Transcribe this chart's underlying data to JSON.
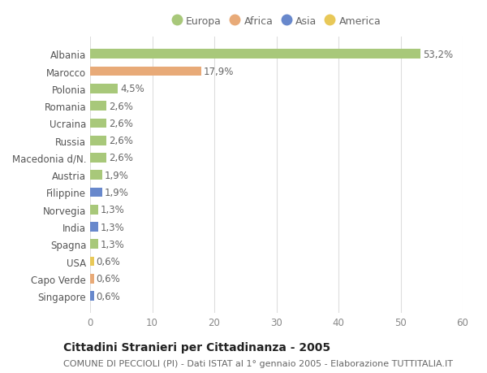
{
  "categories": [
    "Albania",
    "Marocco",
    "Polonia",
    "Romania",
    "Ucraina",
    "Russia",
    "Macedonia d/N.",
    "Austria",
    "Filippine",
    "Norvegia",
    "India",
    "Spagna",
    "USA",
    "Capo Verde",
    "Singapore"
  ],
  "values": [
    53.2,
    17.9,
    4.5,
    2.6,
    2.6,
    2.6,
    2.6,
    1.9,
    1.9,
    1.3,
    1.3,
    1.3,
    0.6,
    0.6,
    0.6
  ],
  "labels": [
    "53,2%",
    "17,9%",
    "4,5%",
    "2,6%",
    "2,6%",
    "2,6%",
    "2,6%",
    "1,9%",
    "1,9%",
    "1,3%",
    "1,3%",
    "1,3%",
    "0,6%",
    "0,6%",
    "0,6%"
  ],
  "continents": [
    "Europa",
    "Africa",
    "Europa",
    "Europa",
    "Europa",
    "Europa",
    "Europa",
    "Europa",
    "Asia",
    "Europa",
    "Asia",
    "Europa",
    "America",
    "Africa",
    "Asia"
  ],
  "colors": {
    "Europa": "#a8c87a",
    "Africa": "#e8aa78",
    "Asia": "#6888cc",
    "America": "#e8c858"
  },
  "legend_order": [
    "Europa",
    "Africa",
    "Asia",
    "America"
  ],
  "title": "Cittadini Stranieri per Cittadinanza - 2005",
  "subtitle": "COMUNE DI PECCIOLI (PI) - Dati ISTAT al 1° gennaio 2005 - Elaborazione TUTTITALIA.IT",
  "xlim": [
    0,
    60
  ],
  "xticks": [
    0,
    10,
    20,
    30,
    40,
    50,
    60
  ],
  "bg_color": "#ffffff",
  "grid_color": "#dddddd",
  "bar_height": 0.55,
  "title_fontsize": 10,
  "subtitle_fontsize": 8,
  "tick_fontsize": 8.5,
  "label_fontsize": 8.5
}
